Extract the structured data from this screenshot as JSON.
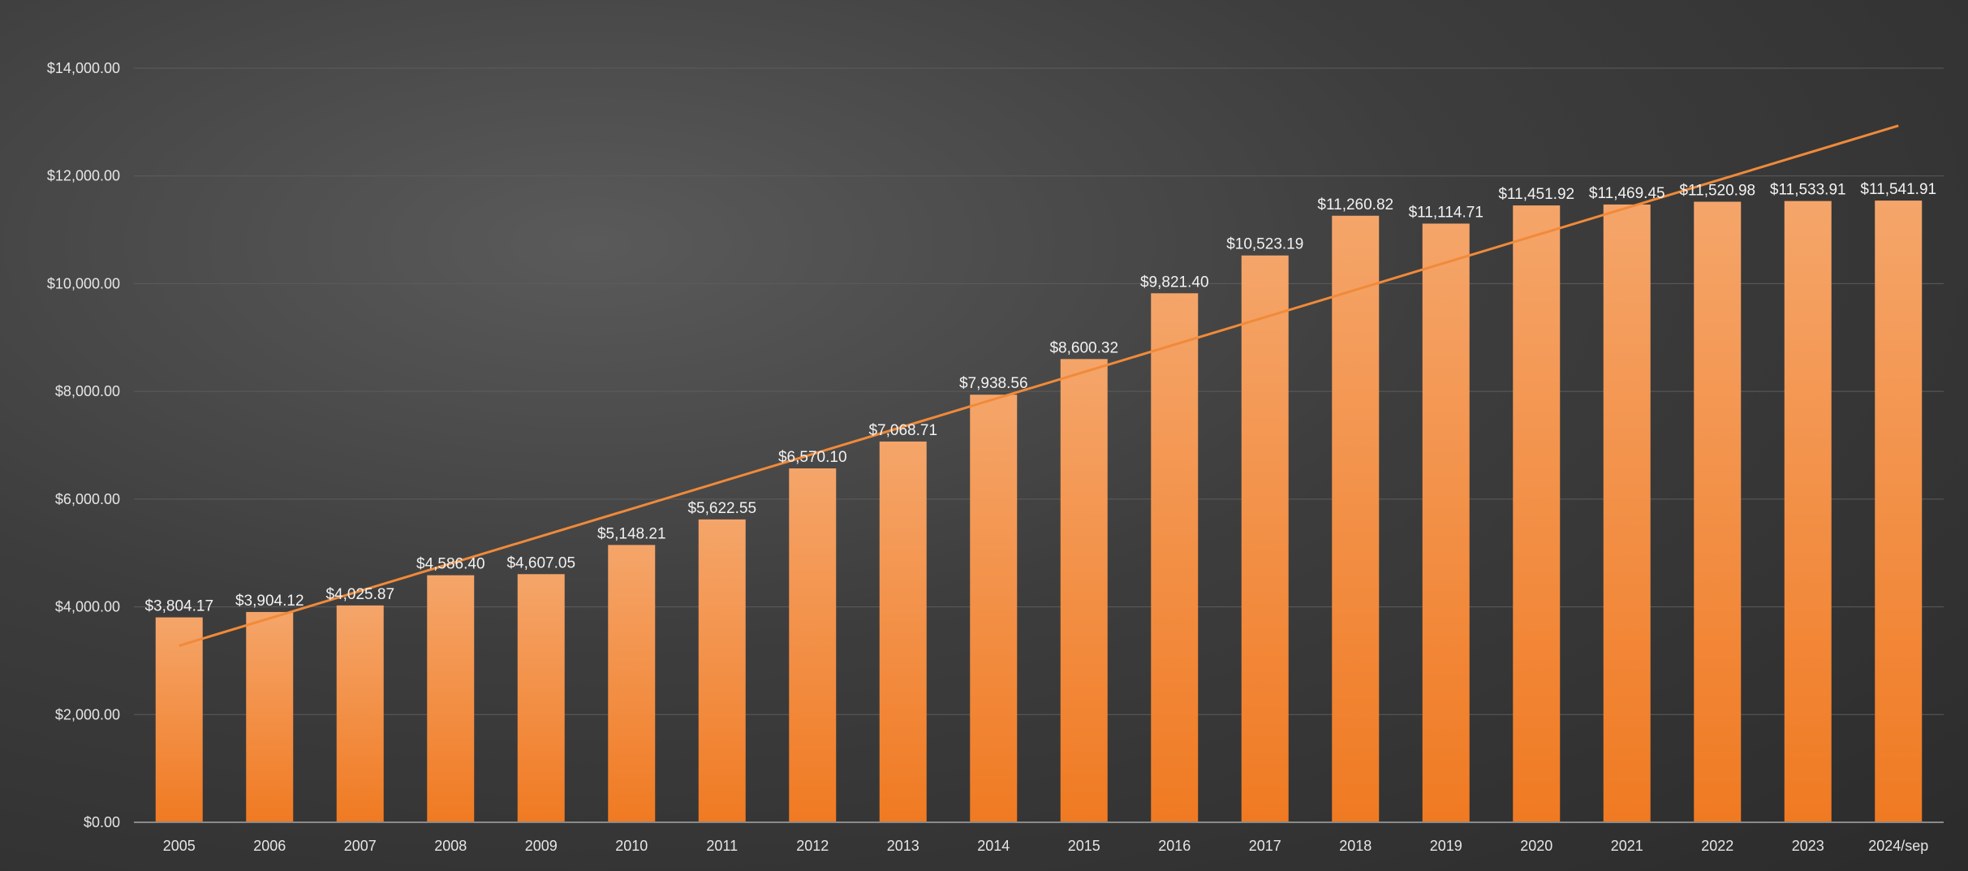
{
  "chart_data": {
    "type": "bar",
    "title": "",
    "xlabel": "",
    "ylabel": "",
    "ylim": [
      0,
      14000
    ],
    "yticks": [
      0,
      2000,
      4000,
      6000,
      8000,
      10000,
      12000,
      14000
    ],
    "ytick_labels": [
      "$0.00",
      "$2,000.00",
      "$4,000.00",
      "$6,000.00",
      "$8,000.00",
      "$10,000.00",
      "$12,000.00",
      "$14,000.00"
    ],
    "grid": true,
    "legend": "none",
    "bar_color": "#f07a22",
    "bar_color_top": "#f5a56a",
    "trendline": {
      "type": "linear",
      "color": "#f08a3a"
    },
    "categories": [
      "2005",
      "2006",
      "2007",
      "2008",
      "2009",
      "2010",
      "2011",
      "2012",
      "2013",
      "2014",
      "2015",
      "2016",
      "2017",
      "2018",
      "2019",
      "2020",
      "2021",
      "2022",
      "2023",
      "2024/sep"
    ],
    "values": [
      3804.17,
      3904.12,
      4025.87,
      4586.4,
      4607.05,
      5148.21,
      5622.55,
      6570.1,
      7068.71,
      7938.56,
      8600.32,
      9821.4,
      10523.19,
      11260.82,
      11114.71,
      11451.92,
      11469.45,
      11520.98,
      11533.91,
      11541.91
    ],
    "data_labels": [
      "$3,804.17",
      "$3,904.12",
      "$4,025.87",
      "$4,586.40",
      "$4,607.05",
      "$5,148.21",
      "$5,622.55",
      "$6,570.10",
      "$7,068.71",
      "$7,938.56",
      "$8,600.32",
      "$9,821.40",
      "$10,523.19",
      "$11,260.82",
      "$11,114.71",
      "$11,451.92",
      "$11,469.45",
      "$11,520.98",
      "$11,533.91",
      "$11,541.91"
    ]
  }
}
